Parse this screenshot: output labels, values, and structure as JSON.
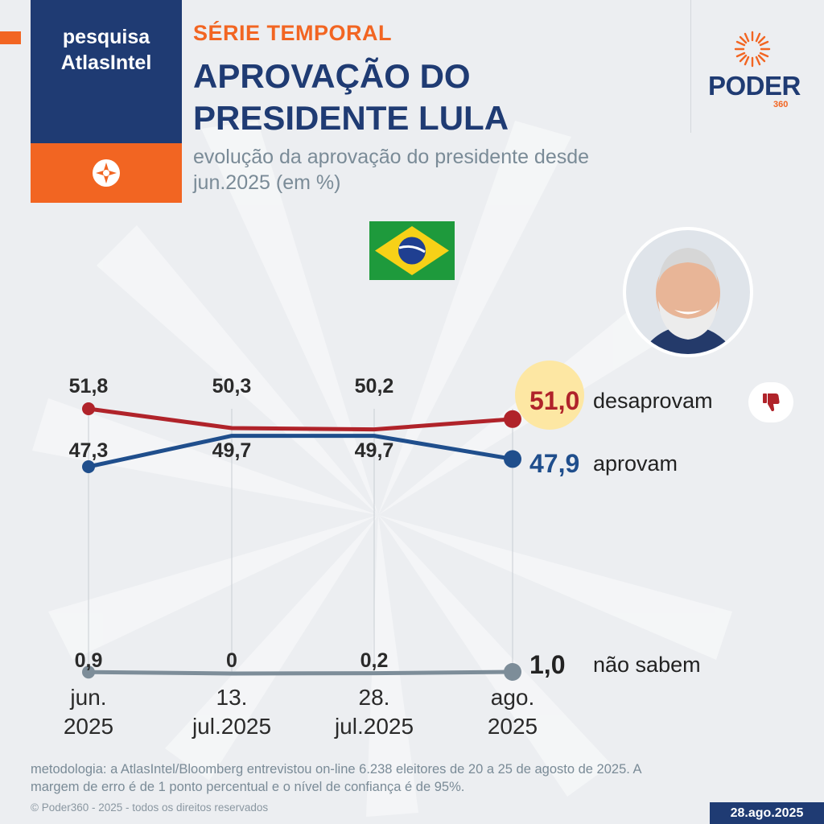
{
  "badge": {
    "line1": "pesquisa",
    "line2": "AtlasIntel"
  },
  "header": {
    "kicker": "SÉRIE TEMPORAL",
    "title_line1": "APROVAÇÃO DO",
    "title_line2": "PRESIDENTE LULA",
    "subtitle_line1": "evolução da aprovação do presidente desde",
    "subtitle_line2": "jun.2025 (em %)"
  },
  "logo": {
    "name": "PODER",
    "number": "360"
  },
  "colors": {
    "navy": "#1f3b73",
    "orange": "#f26522",
    "desaprovam": "#b0232a",
    "aprovam": "#1f4e8c",
    "nao_sabem": "#7d8d99",
    "highlight": "#fde7a3"
  },
  "chart_data": {
    "type": "line",
    "categories": [
      [
        "jun.",
        "2025"
      ],
      [
        "13.",
        "jul.2025"
      ],
      [
        "28.",
        "jul.2025"
      ],
      [
        "ago.",
        "2025"
      ]
    ],
    "series": [
      {
        "name": "desaprovam",
        "values": [
          51.8,
          50.3,
          50.2,
          51.0
        ],
        "labels": [
          "51,8",
          "50,3",
          "50,2",
          "51,0"
        ],
        "color": "#b0232a"
      },
      {
        "name": "aprovam",
        "values": [
          47.3,
          49.7,
          49.7,
          47.9
        ],
        "labels": [
          "47,3",
          "49,7",
          "49,7",
          "47,9"
        ],
        "color": "#1f4e8c"
      },
      {
        "name": "não sabem",
        "values": [
          0.9,
          0,
          0.2,
          1.0
        ],
        "labels": [
          "0,9",
          "0",
          "0,2",
          "1,0"
        ],
        "color": "#7d8d99"
      }
    ],
    "grid": false,
    "legend": "right, inline labels"
  },
  "footer": {
    "method_line1": "metodologia: a AtlasIntel/Bloomberg entrevistou on-line 6.238 eleitores de 20 a 25 de agosto de 2025. A",
    "method_line2": "margem de erro é de 1 ponto percentual e o nível de confiança é de 95%.",
    "copyright": "© Poder360 - 2025 - todos os direitos reservados",
    "date": "28.ago.2025"
  }
}
